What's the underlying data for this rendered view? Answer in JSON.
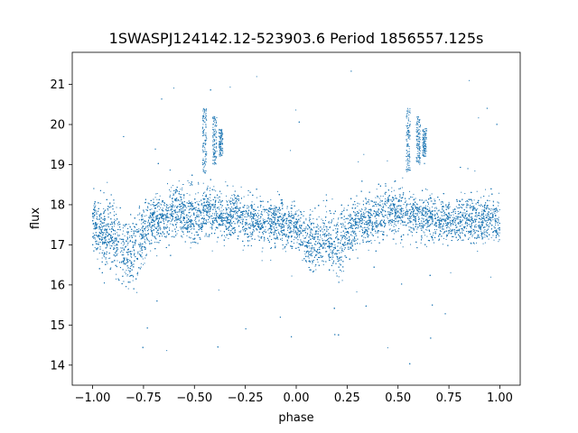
{
  "chart_data": {
    "type": "scatter",
    "title": "1SWASPJ124142.12-523903.6 Period 1856557.125s",
    "xlabel": "phase",
    "ylabel": "flux",
    "xlim": [
      -1.1,
      1.1
    ],
    "ylim": [
      13.5,
      21.8
    ],
    "xticks": [
      -1.0,
      -0.75,
      -0.5,
      -0.25,
      0.0,
      0.25,
      0.5,
      0.75,
      1.0
    ],
    "xtick_labels": [
      "−1.00",
      "−0.75",
      "−0.50",
      "−0.25",
      "0.00",
      "0.25",
      "0.50",
      "0.75",
      "1.00"
    ],
    "yticks": [
      14,
      15,
      16,
      17,
      18,
      19,
      20,
      21
    ],
    "ytick_labels": [
      "14",
      "15",
      "16",
      "17",
      "18",
      "19",
      "20",
      "21"
    ],
    "grid": false,
    "marker_color": "#1f77b4",
    "series": [
      {
        "x_range": [
          -1.0,
          1.0
        ],
        "profile_x": [
          -1.0,
          -0.95,
          -0.9,
          -0.85,
          -0.8,
          -0.75,
          -0.7,
          -0.65,
          -0.6,
          -0.55,
          -0.5,
          -0.45,
          -0.4,
          -0.35,
          -0.3,
          -0.25,
          -0.2,
          -0.15,
          -0.1,
          -0.05,
          0.0,
          0.05,
          0.1,
          0.15,
          0.2,
          0.25,
          0.3,
          0.35,
          0.4,
          0.45,
          0.5,
          0.55,
          0.6,
          0.65,
          0.7,
          0.75,
          0.8,
          0.85,
          0.9,
          0.95,
          1.0
        ],
        "profile_median_flux": [
          17.5,
          17.2,
          17.3,
          16.9,
          16.8,
          17.3,
          17.6,
          17.7,
          17.9,
          17.8,
          17.6,
          17.9,
          17.8,
          17.7,
          17.8,
          17.6,
          17.6,
          17.5,
          17.6,
          17.5,
          17.4,
          17.1,
          17.0,
          17.2,
          16.9,
          17.3,
          17.6,
          17.6,
          17.7,
          17.8,
          17.8,
          17.7,
          17.6,
          17.7,
          17.6,
          17.6,
          17.6,
          17.7,
          17.6,
          17.7,
          17.5
        ],
        "profile_spread": [
          0.6,
          0.7,
          0.7,
          0.8,
          0.8,
          0.7,
          0.5,
          0.5,
          0.6,
          0.6,
          0.6,
          0.6,
          0.6,
          0.5,
          0.5,
          0.5,
          0.5,
          0.5,
          0.5,
          0.5,
          0.5,
          0.6,
          0.7,
          0.7,
          0.8,
          0.6,
          0.5,
          0.5,
          0.6,
          0.6,
          0.6,
          0.5,
          0.5,
          0.5,
          0.5,
          0.5,
          0.5,
          0.5,
          0.5,
          0.5,
          0.5
        ],
        "point_count_estimate": 14000,
        "outlier_flux_range": [
          13.9,
          21.4
        ],
        "bright_clumps": [
          {
            "x": -0.45,
            "flux_range": [
              18.8,
              20.4
            ]
          },
          {
            "x": -0.4,
            "flux_range": [
              19.0,
              20.2
            ]
          },
          {
            "x": -0.37,
            "flux_range": [
              19.2,
              19.9
            ]
          },
          {
            "x": 0.55,
            "flux_range": [
              18.8,
              20.4
            ]
          },
          {
            "x": 0.6,
            "flux_range": [
              19.0,
              20.2
            ]
          },
          {
            "x": 0.63,
            "flux_range": [
              19.2,
              19.9
            ]
          }
        ]
      }
    ]
  }
}
